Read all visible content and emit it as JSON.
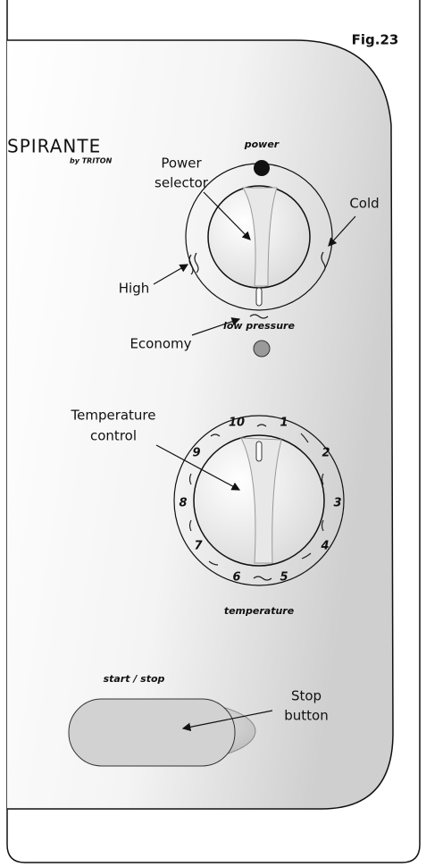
{
  "figure": "Fig.23",
  "brand": {
    "name": "SPIRANTE",
    "maker": "by TRITON"
  },
  "panel": {
    "power_light": "power",
    "low_pressure_light": "low pressure",
    "dial_label": "temperature",
    "button_label": "start / stop",
    "dial_numbers": [
      "10",
      "1",
      "2",
      "3",
      "4",
      "5",
      "6",
      "7",
      "8",
      "9"
    ]
  },
  "callouts": {
    "power_selector": [
      "Power",
      "selector"
    ],
    "cold": "Cold",
    "high": "High",
    "economy": "Economy",
    "temperature_control": [
      "Temperature",
      "control"
    ],
    "stop_button": [
      "Stop",
      "button"
    ]
  }
}
